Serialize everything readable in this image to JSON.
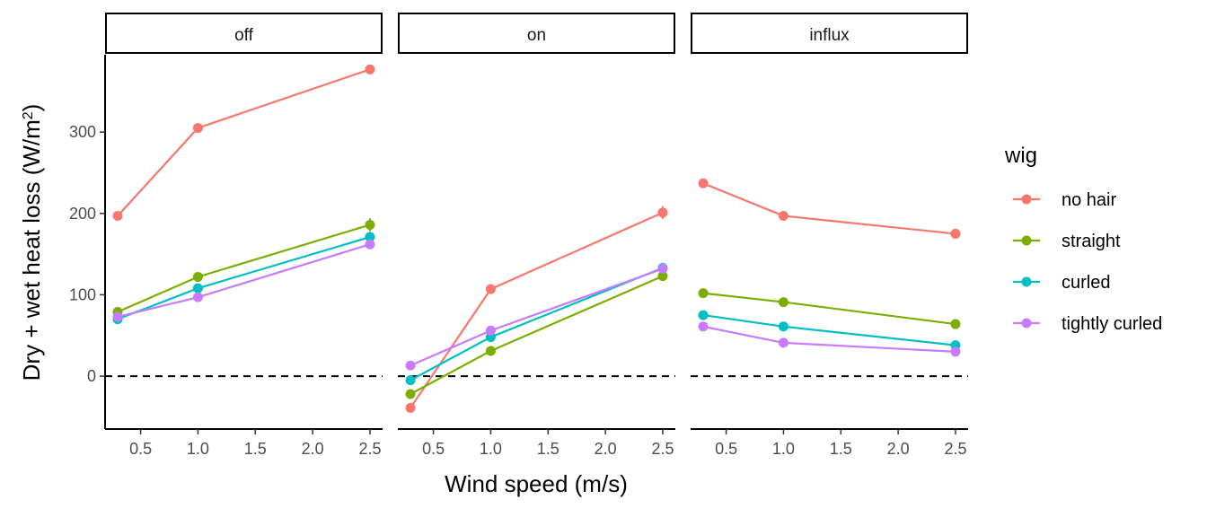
{
  "chart_data": {
    "type": "line",
    "xlabel": "Wind speed (m/s)",
    "ylabel_prefix": "Dry + wet heat loss (W/m",
    "ylabel_sup": "2",
    "ylabel_suffix": ")",
    "xlim": [
      0.19,
      2.61
    ],
    "ylim": [
      -65,
      395
    ],
    "x_ticks": [
      {
        "value": 0.5,
        "label": "0.5"
      },
      {
        "value": 1.0,
        "label": "1.0"
      },
      {
        "value": 1.5,
        "label": "1.5"
      },
      {
        "value": 2.0,
        "label": "2.0"
      },
      {
        "value": 2.5,
        "label": "2.5"
      }
    ],
    "y_ticks": [
      {
        "value": 0,
        "label": "0"
      },
      {
        "value": 100,
        "label": "100"
      },
      {
        "value": 200,
        "label": "200"
      },
      {
        "value": 300,
        "label": "300"
      }
    ],
    "reference_line": {
      "y": 0,
      "style": "dashed"
    },
    "grid": false,
    "legend": {
      "title": "wig",
      "placement": "right",
      "entries": [
        {
          "label": "no hair",
          "color": "#F8766D"
        },
        {
          "label": "straight",
          "color": "#7CAE00"
        },
        {
          "label": "curled",
          "color": "#00BFC4"
        },
        {
          "label": "tightly curled",
          "color": "#C77CFF"
        }
      ]
    },
    "x": [
      0.3,
      1.0,
      2.5
    ],
    "panels": [
      {
        "label": "off",
        "series": [
          {
            "name": "no hair",
            "values": [
              197,
              305,
              377
            ],
            "err": [
              2,
              2,
              2
            ]
          },
          {
            "name": "straight",
            "values": [
              79,
              122,
              186
            ],
            "err": [
              2,
              2,
              8
            ]
          },
          {
            "name": "curled",
            "values": [
              70,
              108,
              171
            ],
            "err": [
              2,
              2,
              3
            ]
          },
          {
            "name": "tightly curled",
            "values": [
              73,
              97,
              162
            ],
            "err": [
              2,
              2,
              3
            ]
          }
        ]
      },
      {
        "label": "on",
        "series": [
          {
            "name": "no hair",
            "values": [
              -39,
              107,
              201
            ],
            "err": [
              5,
              5,
              8
            ]
          },
          {
            "name": "straight",
            "values": [
              -22,
              31,
              123
            ],
            "err": [
              2,
              2,
              3
            ]
          },
          {
            "name": "curled",
            "values": [
              -5,
              48,
              133
            ],
            "err": [
              2,
              2,
              5
            ]
          },
          {
            "name": "tightly curled",
            "values": [
              13,
              56,
              132
            ],
            "err": [
              2,
              2,
              3
            ]
          }
        ]
      },
      {
        "label": "influx",
        "series": [
          {
            "name": "no hair",
            "values": [
              237,
              197,
              175
            ],
            "err": [
              4,
              4,
              5
            ]
          },
          {
            "name": "straight",
            "values": [
              102,
              91,
              64
            ],
            "err": [
              2,
              3,
              4
            ]
          },
          {
            "name": "curled",
            "values": [
              75,
              61,
              38
            ],
            "err": [
              2,
              2,
              3
            ]
          },
          {
            "name": "tightly curled",
            "values": [
              61,
              41,
              30
            ],
            "err": [
              2,
              2,
              2
            ]
          }
        ]
      }
    ]
  }
}
